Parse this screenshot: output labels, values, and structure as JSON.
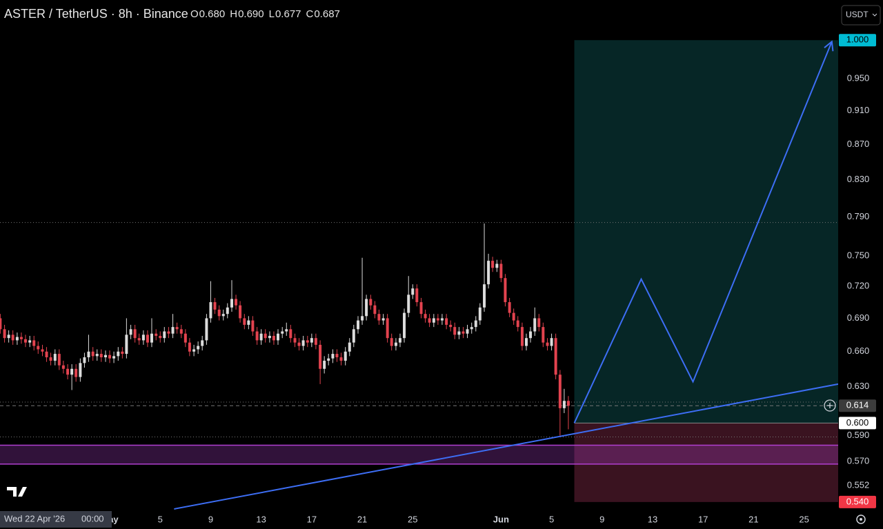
{
  "header": {
    "title": "ASTER / TetherUS · 8h · Binance",
    "ohlc": [
      {
        "label": "O",
        "value": "0.680"
      },
      {
        "label": "H",
        "value": "0.690"
      },
      {
        "label": "L",
        "value": "0.677"
      },
      {
        "label": "C",
        "value": "0.687"
      }
    ]
  },
  "currency": "USDT",
  "crosshair": {
    "date": "Wed 22 Apr '26",
    "time": "00:00"
  },
  "chart_data": {
    "type": "candlestick",
    "log_scale": true,
    "up_color": "#dcdcdc",
    "down_color": "#e3434f",
    "x": [
      112.33,
      112.67,
      113,
      113.33,
      113.67,
      114,
      114.33,
      114.67,
      115,
      115.33,
      115.67,
      116,
      116.33,
      116.67,
      117,
      117.33,
      117.67,
      118,
      118.33,
      118.67,
      119,
      119.33,
      119.67,
      120,
      120.33,
      120.67,
      121,
      121.33,
      121.67,
      122,
      122.33,
      122.67,
      123,
      123.33,
      123.67,
      124,
      124.33,
      124.67,
      125,
      125.33,
      125.67,
      126,
      126.33,
      126.67,
      127,
      127.33,
      127.67,
      128,
      128.33,
      128.67,
      129,
      129.33,
      129.67,
      130,
      130.33,
      130.67,
      131,
      131.33,
      131.67,
      132,
      132.33,
      132.67,
      133,
      133.33,
      133.67,
      134,
      134.33,
      134.67,
      135,
      135.33,
      135.67,
      136,
      136.33,
      136.67,
      137,
      137.33,
      137.67,
      138,
      138.33,
      138.67,
      139,
      139.33,
      139.67,
      140,
      140.33,
      140.67,
      141,
      141.33,
      141.67,
      142,
      142.33,
      142.67,
      143,
      143.33,
      143.67,
      144,
      144.33,
      144.67,
      145,
      145.33,
      145.67,
      146,
      146.33,
      146.67,
      147,
      147.33,
      147.67,
      148,
      148.33,
      148.67,
      149,
      149.33,
      149.67,
      150,
      150.33,
      150.67,
      151,
      151.33,
      151.67,
      152,
      152.33,
      152.67,
      153,
      153.33,
      153.67,
      154,
      154.33,
      154.67,
      155,
      155.33,
      155.67,
      156,
      156.33,
      156.67,
      157,
      157.33
    ],
    "open": [
      0.69,
      0.68,
      0.672,
      0.675,
      0.67,
      0.673,
      0.671,
      0.668,
      0.67,
      0.665,
      0.662,
      0.66,
      0.655,
      0.652,
      0.658,
      0.648,
      0.645,
      0.64,
      0.645,
      0.638,
      0.65,
      0.655,
      0.66,
      0.656,
      0.658,
      0.655,
      0.657,
      0.654,
      0.656,
      0.66,
      0.658,
      0.675,
      0.68,
      0.672,
      0.67,
      0.675,
      0.668,
      0.676,
      0.674,
      0.672,
      0.678,
      0.676,
      0.682,
      0.68,
      0.676,
      0.668,
      0.66,
      0.662,
      0.665,
      0.67,
      0.69,
      0.705,
      0.698,
      0.692,
      0.694,
      0.7,
      0.708,
      0.702,
      0.69,
      0.684,
      0.688,
      0.678,
      0.67,
      0.676,
      0.672,
      0.674,
      0.67,
      0.676,
      0.678,
      0.68,
      0.672,
      0.668,
      0.665,
      0.67,
      0.668,
      0.672,
      0.666,
      0.645,
      0.652,
      0.654,
      0.658,
      0.655,
      0.652,
      0.66,
      0.668,
      0.68,
      0.688,
      0.692,
      0.708,
      0.702,
      0.694,
      0.688,
      0.69,
      0.672,
      0.665,
      0.668,
      0.672,
      0.695,
      0.712,
      0.718,
      0.705,
      0.694,
      0.69,
      0.686,
      0.69,
      0.688,
      0.69,
      0.684,
      0.682,
      0.675,
      0.678,
      0.676,
      0.68,
      0.682,
      0.688,
      0.7,
      0.722,
      0.745,
      0.738,
      0.742,
      0.728,
      0.705,
      0.695,
      0.688,
      0.682,
      0.665,
      0.672,
      0.678,
      0.69,
      0.682,
      0.668,
      0.665,
      0.672,
      0.64,
      0.612,
      0.618
    ],
    "high": [
      0.694,
      0.684,
      0.679,
      0.679,
      0.677,
      0.677,
      0.675,
      0.674,
      0.674,
      0.669,
      0.666,
      0.664,
      0.659,
      0.662,
      0.662,
      0.652,
      0.649,
      0.649,
      0.649,
      0.654,
      0.659,
      0.675,
      0.664,
      0.662,
      0.662,
      0.661,
      0.661,
      0.66,
      0.664,
      0.664,
      0.69,
      0.684,
      0.684,
      0.676,
      0.679,
      0.679,
      0.69,
      0.68,
      0.678,
      0.682,
      0.682,
      0.694,
      0.686,
      0.684,
      0.68,
      0.672,
      0.666,
      0.669,
      0.674,
      0.694,
      0.725,
      0.709,
      0.702,
      0.698,
      0.704,
      0.726,
      0.712,
      0.706,
      0.694,
      0.692,
      0.692,
      0.682,
      0.68,
      0.68,
      0.678,
      0.678,
      0.68,
      0.682,
      0.686,
      0.684,
      0.676,
      0.672,
      0.674,
      0.674,
      0.676,
      0.676,
      0.67,
      0.656,
      0.658,
      0.662,
      0.662,
      0.659,
      0.664,
      0.672,
      0.684,
      0.692,
      0.748,
      0.712,
      0.712,
      0.706,
      0.698,
      0.694,
      0.694,
      0.676,
      0.672,
      0.676,
      0.699,
      0.73,
      0.722,
      0.722,
      0.709,
      0.698,
      0.694,
      0.694,
      0.694,
      0.694,
      0.694,
      0.688,
      0.686,
      0.682,
      0.682,
      0.684,
      0.686,
      0.692,
      0.704,
      0.783,
      0.752,
      0.749,
      0.746,
      0.746,
      0.732,
      0.709,
      0.699,
      0.692,
      0.686,
      0.676,
      0.682,
      0.7,
      0.694,
      0.686,
      0.672,
      0.676,
      0.676,
      0.644,
      0.628,
      0.622
    ],
    "low": [
      0.676,
      0.668,
      0.668,
      0.666,
      0.666,
      0.667,
      0.664,
      0.664,
      0.661,
      0.658,
      0.656,
      0.651,
      0.648,
      0.648,
      0.644,
      0.641,
      0.636,
      0.627,
      0.634,
      0.634,
      0.646,
      0.651,
      0.652,
      0.652,
      0.651,
      0.651,
      0.65,
      0.65,
      0.652,
      0.654,
      0.654,
      0.671,
      0.668,
      0.666,
      0.666,
      0.664,
      0.664,
      0.67,
      0.668,
      0.668,
      0.672,
      0.672,
      0.676,
      0.672,
      0.664,
      0.656,
      0.656,
      0.658,
      0.661,
      0.666,
      0.686,
      0.694,
      0.688,
      0.688,
      0.69,
      0.696,
      0.698,
      0.686,
      0.68,
      0.68,
      0.674,
      0.666,
      0.666,
      0.668,
      0.668,
      0.666,
      0.666,
      0.672,
      0.674,
      0.668,
      0.664,
      0.661,
      0.661,
      0.664,
      0.664,
      0.662,
      0.632,
      0.641,
      0.648,
      0.65,
      0.651,
      0.648,
      0.648,
      0.656,
      0.664,
      0.676,
      0.684,
      0.688,
      0.698,
      0.69,
      0.684,
      0.684,
      0.668,
      0.661,
      0.661,
      0.664,
      0.668,
      0.691,
      0.708,
      0.701,
      0.69,
      0.686,
      0.682,
      0.682,
      0.684,
      0.684,
      0.68,
      0.678,
      0.671,
      0.671,
      0.672,
      0.672,
      0.676,
      0.678,
      0.684,
      0.696,
      0.718,
      0.734,
      0.734,
      0.724,
      0.701,
      0.691,
      0.684,
      0.678,
      0.661,
      0.661,
      0.668,
      0.674,
      0.678,
      0.664,
      0.661,
      0.661,
      0.636,
      0.59,
      0.608,
      0.595
    ],
    "close": [
      0.68,
      0.672,
      0.675,
      0.67,
      0.673,
      0.671,
      0.668,
      0.67,
      0.665,
      0.662,
      0.66,
      0.655,
      0.652,
      0.658,
      0.648,
      0.645,
      0.64,
      0.645,
      0.638,
      0.65,
      0.655,
      0.66,
      0.656,
      0.658,
      0.655,
      0.657,
      0.654,
      0.656,
      0.66,
      0.658,
      0.675,
      0.68,
      0.672,
      0.67,
      0.675,
      0.668,
      0.676,
      0.674,
      0.672,
      0.678,
      0.676,
      0.682,
      0.68,
      0.676,
      0.668,
      0.66,
      0.662,
      0.665,
      0.67,
      0.69,
      0.705,
      0.698,
      0.692,
      0.694,
      0.7,
      0.708,
      0.702,
      0.69,
      0.684,
      0.688,
      0.678,
      0.67,
      0.676,
      0.672,
      0.674,
      0.67,
      0.676,
      0.678,
      0.68,
      0.672,
      0.668,
      0.665,
      0.67,
      0.668,
      0.672,
      0.666,
      0.645,
      0.652,
      0.654,
      0.658,
      0.655,
      0.652,
      0.66,
      0.668,
      0.68,
      0.688,
      0.692,
      0.708,
      0.702,
      0.694,
      0.688,
      0.69,
      0.672,
      0.665,
      0.668,
      0.672,
      0.695,
      0.712,
      0.718,
      0.705,
      0.694,
      0.69,
      0.686,
      0.69,
      0.688,
      0.69,
      0.684,
      0.682,
      0.675,
      0.678,
      0.676,
      0.68,
      0.682,
      0.688,
      0.7,
      0.722,
      0.745,
      0.738,
      0.742,
      0.728,
      0.705,
      0.695,
      0.688,
      0.682,
      0.665,
      0.672,
      0.678,
      0.69,
      0.682,
      0.668,
      0.665,
      0.672,
      0.64,
      0.612,
      0.618,
      0.614
    ],
    "xlim": [
      112.31,
      178.7
    ],
    "ylim": [
      0.534,
      1.055
    ],
    "xticks": [
      {
        "value": 121,
        "label": "May"
      },
      {
        "value": 125,
        "label": "5"
      },
      {
        "value": 129,
        "label": "9"
      },
      {
        "value": 133,
        "label": "13"
      },
      {
        "value": 137,
        "label": "17"
      },
      {
        "value": 141,
        "label": "21"
      },
      {
        "value": 145,
        "label": "25"
      },
      {
        "value": 152,
        "label": "Jun"
      },
      {
        "value": 156,
        "label": "5"
      },
      {
        "value": 160,
        "label": "9"
      },
      {
        "value": 164,
        "label": "13"
      },
      {
        "value": 168,
        "label": "17"
      },
      {
        "value": 172,
        "label": "21"
      },
      {
        "value": 176,
        "label": "25"
      }
    ],
    "yticks": [
      {
        "value": 0.95,
        "label": "0.950"
      },
      {
        "value": 0.91,
        "label": "0.910"
      },
      {
        "value": 0.87,
        "label": "0.870"
      },
      {
        "value": 0.83,
        "label": "0.830"
      },
      {
        "value": 0.79,
        "label": "0.790"
      },
      {
        "value": 0.75,
        "label": "0.750"
      },
      {
        "value": 0.72,
        "label": "0.720"
      },
      {
        "value": 0.69,
        "label": "0.690"
      },
      {
        "value": 0.66,
        "label": "0.660"
      },
      {
        "value": 0.63,
        "label": "0.630"
      },
      {
        "value": 0.59,
        "label": "0.590"
      },
      {
        "value": 0.57,
        "label": "0.570"
      },
      {
        "value": 0.552,
        "label": "0.552"
      }
    ],
    "price_markers": [
      {
        "value": 1,
        "label": "1.000",
        "bg": "#00bcd4",
        "fg": "#000000"
      },
      {
        "value": 0.614,
        "label": "0.614",
        "bg": "#3c3c3c",
        "fg": "#ffffff"
      },
      {
        "value": 0.6,
        "label": "0.600",
        "bg": "#ffffff",
        "fg": "#000000"
      },
      {
        "value": 0.54,
        "label": "0.540",
        "bg": "#f23645",
        "fg": "#ffffff"
      }
    ],
    "position": {
      "start": 157.8,
      "end": 178.7,
      "entry": 0.6,
      "target": 1,
      "stop": 0.54,
      "profit_color": "#062626",
      "loss_color": "#3a1320"
    },
    "zone": {
      "low": 0.568,
      "high": 0.5825,
      "color": "#b03fcf"
    },
    "levels": [
      {
        "value": 0.784,
        "style": "dotted"
      },
      {
        "value": 0.617,
        "style": "dotted"
      },
      {
        "value": 0.614,
        "style": "dashed"
      },
      {
        "value": 0.589,
        "style": "dotted"
      }
    ],
    "drawings": [
      {
        "x": [
          126.1,
          178.7
        ],
        "y": [
          0.535,
          0.632
        ],
        "color": "#3d6ef5"
      },
      {
        "x": [
          157.8,
          163.1,
          167.2,
          178.2
        ],
        "y": [
          0.6,
          0.727,
          0.634,
          0.998
        ],
        "color": "#3d6ef5",
        "arrow": true
      }
    ]
  }
}
